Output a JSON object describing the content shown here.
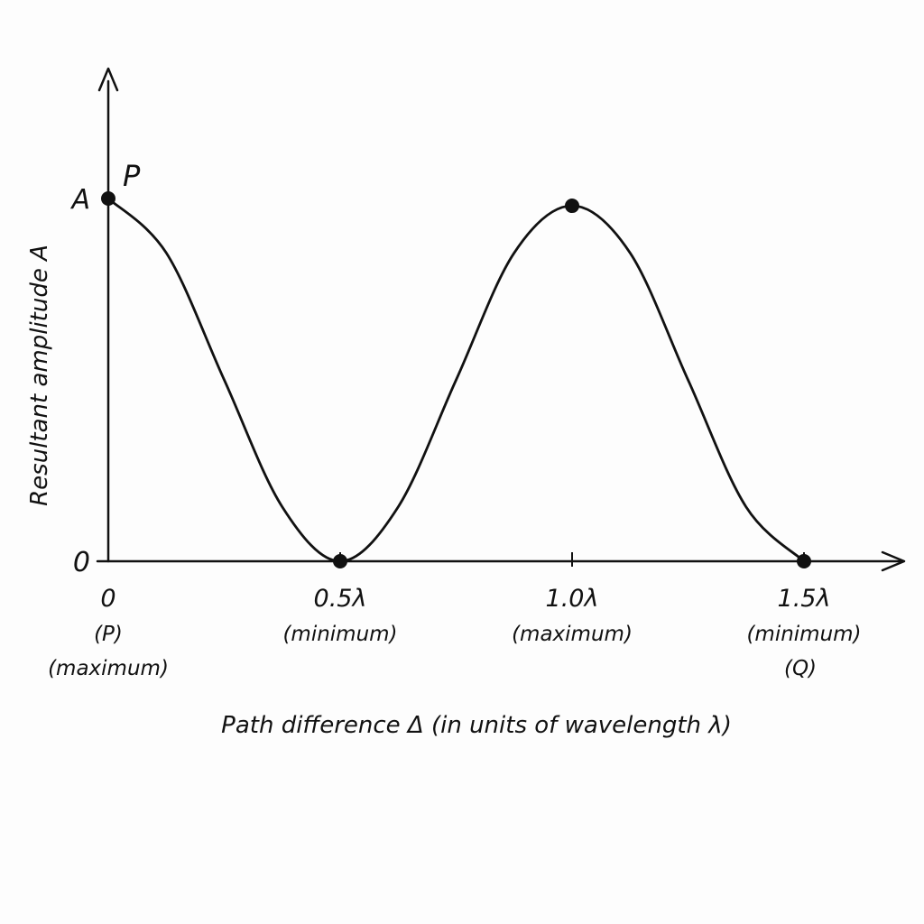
{
  "chart_data": {
    "type": "line",
    "xlabel": "Path difference Δ (in units of wavelength λ)",
    "ylabel": "Resultant amplitude A",
    "xlim": [
      0,
      1.75
    ],
    "ylim": [
      0,
      1.0
    ],
    "grid": false,
    "series": [
      {
        "x": [
          0,
          0.125,
          0.25,
          0.375,
          0.5,
          0.625,
          0.75,
          0.875,
          1.0,
          1.125,
          1.25,
          1.375,
          1.5
        ],
        "values": [
          1.0,
          0.85,
          0.5,
          0.15,
          0.0,
          0.15,
          0.5,
          0.85,
          0.98,
          0.85,
          0.5,
          0.15,
          0.0
        ]
      }
    ],
    "x_ticks": [
      {
        "value": 0,
        "label": "0",
        "annotation": [
          "(P)",
          "(maximum)"
        ]
      },
      {
        "value": 0.5,
        "label": "0.5λ",
        "annotation": [
          "(minimum)"
        ]
      },
      {
        "value": 1.0,
        "label": "1.0λ",
        "annotation": [
          "(maximum)"
        ]
      },
      {
        "value": 1.5,
        "label": "1.5λ",
        "annotation": [
          "(minimum)",
          "(Q)"
        ]
      }
    ],
    "y_ticks": [
      {
        "value": 0,
        "label": "0"
      },
      {
        "value": 1.0,
        "label": "A"
      }
    ],
    "marked_points": [
      {
        "x": 0,
        "y": 1.0,
        "label": "P"
      },
      {
        "x": 0.5,
        "y": 0.0,
        "label": ""
      },
      {
        "x": 1.0,
        "y": 0.98,
        "label": ""
      },
      {
        "x": 1.5,
        "y": 0.0,
        "label": ""
      }
    ],
    "colors": {
      "line": "#111111",
      "axis": "#111111",
      "text": "#111111"
    }
  }
}
